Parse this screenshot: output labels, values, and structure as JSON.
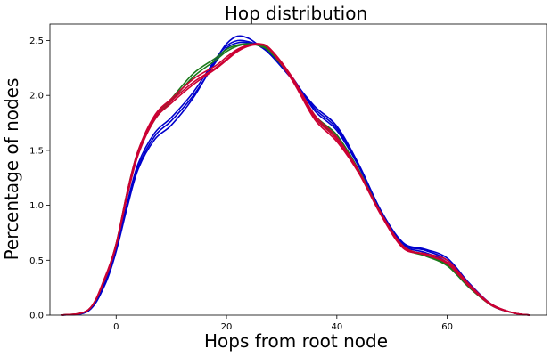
{
  "chart_data": {
    "type": "line",
    "title": "Hop distribution",
    "xlabel": "Hops from root node",
    "ylabel": "Percentage of nodes",
    "xlim": [
      -12,
      78
    ],
    "ylim": [
      0,
      2.65
    ],
    "xticks": [
      0,
      20,
      40,
      60,
      80
    ],
    "yticks": [
      0.0,
      0.5,
      1.0,
      1.5,
      2.0,
      2.5
    ],
    "grid": false,
    "legend": "none",
    "series_colors": [
      "#0000cc",
      "#1a7a1a",
      "#cc0033"
    ],
    "series": [
      {
        "color": "#0000cc",
        "x": [
          -10,
          -5,
          -2,
          0,
          2,
          4,
          7,
          10,
          14,
          18,
          20,
          22,
          24,
          26,
          28,
          32,
          36,
          40,
          44,
          48,
          52,
          56,
          60,
          64,
          68,
          72,
          75
        ],
        "y": [
          0.0,
          0.04,
          0.28,
          0.58,
          0.98,
          1.33,
          1.6,
          1.73,
          1.98,
          2.32,
          2.47,
          2.54,
          2.52,
          2.45,
          2.37,
          2.14,
          1.9,
          1.72,
          1.37,
          0.95,
          0.65,
          0.59,
          0.5,
          0.28,
          0.1,
          0.02,
          0.0
        ]
      },
      {
        "color": "#0000cc",
        "x": [
          -10,
          -5,
          -2,
          0,
          2,
          4,
          7,
          10,
          14,
          18,
          20,
          22,
          24,
          26,
          28,
          32,
          36,
          40,
          44,
          48,
          52,
          56,
          60,
          64,
          68,
          72,
          75
        ],
        "y": [
          0.0,
          0.04,
          0.3,
          0.6,
          1.02,
          1.38,
          1.66,
          1.8,
          2.03,
          2.33,
          2.45,
          2.5,
          2.49,
          2.45,
          2.37,
          2.15,
          1.88,
          1.7,
          1.36,
          0.95,
          0.66,
          0.6,
          0.52,
          0.29,
          0.1,
          0.02,
          0.0
        ]
      },
      {
        "color": "#0000cc",
        "x": [
          -10,
          -5,
          -2,
          0,
          2,
          4,
          7,
          10,
          14,
          18,
          20,
          22,
          24,
          26,
          28,
          32,
          36,
          40,
          44,
          48,
          52,
          56,
          60,
          64,
          68,
          72,
          75
        ],
        "y": [
          0.0,
          0.04,
          0.29,
          0.59,
          1.0,
          1.35,
          1.63,
          1.77,
          2.0,
          2.3,
          2.43,
          2.48,
          2.48,
          2.45,
          2.38,
          2.16,
          1.86,
          1.68,
          1.35,
          0.94,
          0.64,
          0.57,
          0.48,
          0.27,
          0.09,
          0.02,
          0.0
        ]
      },
      {
        "color": "#1a7a1a",
        "x": [
          -10,
          -5,
          -2,
          0,
          2,
          4,
          7,
          10,
          14,
          18,
          20,
          22,
          24,
          26,
          28,
          32,
          36,
          40,
          44,
          48,
          52,
          56,
          60,
          64,
          68,
          72,
          75
        ],
        "y": [
          0.0,
          0.05,
          0.33,
          0.64,
          1.1,
          1.48,
          1.78,
          1.95,
          2.17,
          2.32,
          2.4,
          2.45,
          2.47,
          2.46,
          2.4,
          2.15,
          1.82,
          1.64,
          1.32,
          0.93,
          0.63,
          0.55,
          0.46,
          0.26,
          0.09,
          0.02,
          0.0
        ]
      },
      {
        "color": "#1a7a1a",
        "x": [
          -10,
          -5,
          -2,
          0,
          2,
          4,
          7,
          10,
          14,
          18,
          20,
          22,
          24,
          26,
          28,
          32,
          36,
          40,
          44,
          48,
          52,
          56,
          60,
          64,
          68,
          72,
          75
        ],
        "y": [
          0.0,
          0.05,
          0.34,
          0.65,
          1.12,
          1.5,
          1.8,
          1.97,
          2.2,
          2.34,
          2.42,
          2.46,
          2.47,
          2.45,
          2.39,
          2.14,
          1.8,
          1.62,
          1.31,
          0.92,
          0.62,
          0.54,
          0.45,
          0.25,
          0.09,
          0.02,
          0.0
        ]
      },
      {
        "color": "#cc0033",
        "x": [
          -10,
          -5,
          -2,
          0,
          2,
          4,
          7,
          10,
          14,
          18,
          20,
          22,
          24,
          26,
          28,
          32,
          36,
          40,
          44,
          48,
          52,
          56,
          60,
          64,
          68,
          72,
          75
        ],
        "y": [
          0.0,
          0.05,
          0.34,
          0.64,
          1.1,
          1.48,
          1.8,
          1.95,
          2.12,
          2.25,
          2.33,
          2.41,
          2.45,
          2.47,
          2.42,
          2.15,
          1.8,
          1.6,
          1.3,
          0.92,
          0.62,
          0.55,
          0.48,
          0.27,
          0.1,
          0.02,
          0.0
        ]
      },
      {
        "color": "#cc0033",
        "x": [
          -10,
          -5,
          -2,
          0,
          2,
          4,
          7,
          10,
          14,
          18,
          20,
          22,
          24,
          26,
          28,
          32,
          36,
          40,
          44,
          48,
          52,
          56,
          60,
          64,
          68,
          72,
          75
        ],
        "y": [
          0.0,
          0.05,
          0.35,
          0.65,
          1.12,
          1.5,
          1.82,
          1.97,
          2.15,
          2.27,
          2.35,
          2.42,
          2.46,
          2.47,
          2.41,
          2.13,
          1.78,
          1.58,
          1.29,
          0.91,
          0.61,
          0.56,
          0.5,
          0.28,
          0.1,
          0.02,
          0.0
        ]
      },
      {
        "color": "#cc0033",
        "x": [
          -10,
          -5,
          -2,
          0,
          2,
          4,
          7,
          10,
          14,
          18,
          20,
          22,
          24,
          26,
          28,
          32,
          36,
          40,
          44,
          48,
          52,
          56,
          60,
          64,
          68,
          72,
          75
        ],
        "y": [
          0.0,
          0.05,
          0.33,
          0.63,
          1.08,
          1.46,
          1.78,
          1.93,
          2.1,
          2.24,
          2.32,
          2.4,
          2.45,
          2.46,
          2.42,
          2.16,
          1.82,
          1.62,
          1.31,
          0.93,
          0.63,
          0.55,
          0.47,
          0.26,
          0.09,
          0.02,
          0.0
        ]
      }
    ]
  }
}
